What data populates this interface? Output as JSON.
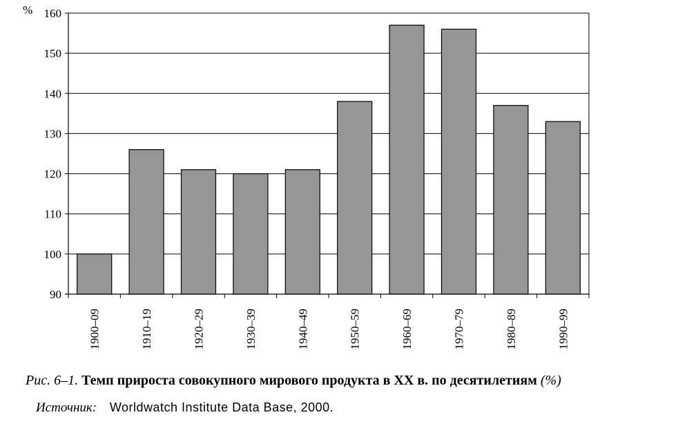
{
  "chart_data": {
    "type": "bar",
    "unit_label": "%",
    "categories": [
      "1900–09",
      "1910–19",
      "1920–29",
      "1930–39",
      "1940–49",
      "1950–59",
      "1960–69",
      "1970–79",
      "1980–89",
      "1990–99"
    ],
    "values": [
      100,
      126,
      121,
      120,
      121,
      138,
      157,
      156,
      137,
      133
    ],
    "ylim": [
      90,
      160
    ],
    "yticks": [
      90,
      100,
      110,
      120,
      130,
      140,
      150,
      160
    ],
    "grid": true,
    "bar_color": "#969696",
    "title": "Темп прироста совокупного мирового продукта в XX в. по десятилетиям",
    "xlabel": "",
    "ylabel": ""
  },
  "caption": {
    "figure_number": "Рис. 6–1.",
    "title": "Темп прироста совокупного мирового продукта в XX в. по десятилетиям",
    "unit": "(%)"
  },
  "source": {
    "label": "Источник:",
    "text": "Worldwatch Institute Data Base, 2000."
  }
}
